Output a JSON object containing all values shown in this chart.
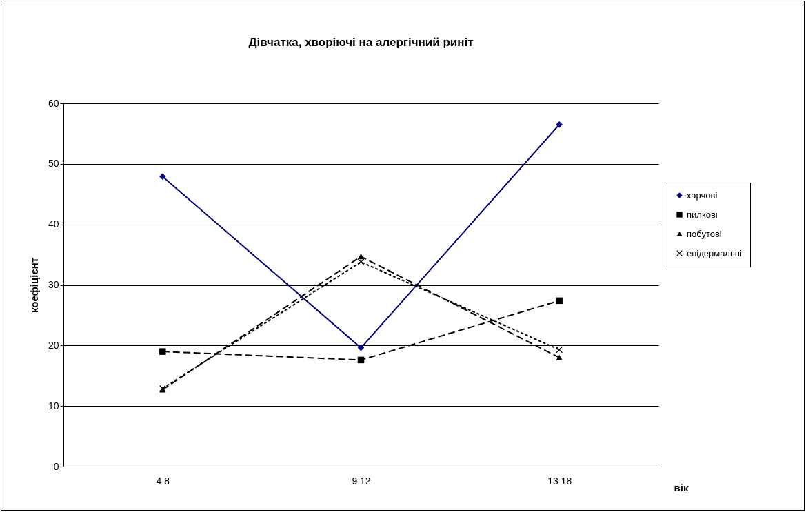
{
  "chart_data": {
    "type": "line",
    "title": "Дівчатка, хворіючі на алергічний риніт",
    "xlabel": "вік",
    "ylabel": "коефіцієнт",
    "categories": [
      "4  8",
      "9  12",
      "13  18"
    ],
    "series": [
      {
        "name": "харчові",
        "color": "#000080",
        "marker": "diamond",
        "line_style": "solid",
        "values": [
          47.9,
          19.6,
          56.5
        ]
      },
      {
        "name": "пилкові",
        "color": "#000000",
        "marker": "square",
        "line_style": "dashed",
        "values": [
          19.0,
          17.6,
          27.4
        ]
      },
      {
        "name": "побутові",
        "color": "#000000",
        "marker": "triangle",
        "line_style": "dashed",
        "values": [
          12.7,
          34.7,
          18.0
        ]
      },
      {
        "name": "епідермальні",
        "color": "#000000",
        "marker": "cross",
        "line_style": "dotted",
        "values": [
          12.9,
          33.8,
          19.3
        ]
      }
    ],
    "ylim": [
      0,
      60
    ],
    "yticks": [
      0,
      10,
      20,
      30,
      40,
      50,
      60
    ],
    "grid": "y",
    "legend": "right"
  }
}
